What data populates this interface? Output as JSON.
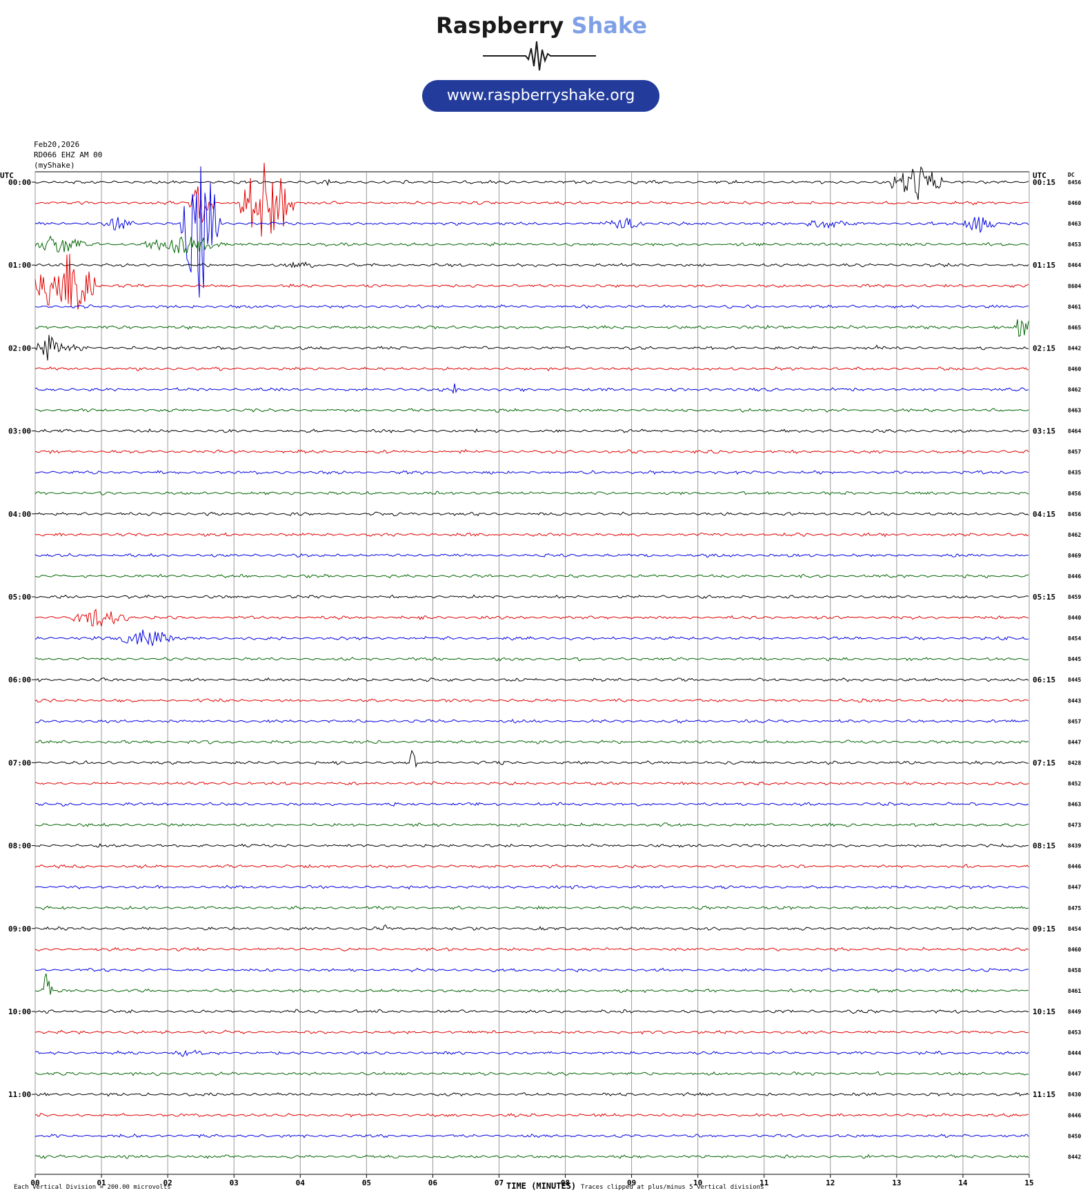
{
  "brand": {
    "word1": "Raspberry",
    "word2": "Shake",
    "url": "www.raspberryshake.org",
    "accent_dark": "#1a1a1a",
    "accent_light": "#7fa0e6",
    "pill_color": "#233c9b",
    "icon": "seismic-wave-icon"
  },
  "header": {
    "date": "Feb20,2026",
    "station": "RD066 EHZ AM 00",
    "owner": "(myShake)"
  },
  "footer": {
    "scale_note": "Each Vertical Division =  200.00 microvolts",
    "xlabel": "TIME (MINUTES)",
    "clip_note": "Traces clipped at plus/minus 5 vertical divisions"
  },
  "chart_data": {
    "type": "line",
    "subtype": "helicorder",
    "xlabel": "TIME (MINUTES)",
    "xlim": [
      0,
      15
    ],
    "x_ticks": [
      "00",
      "01",
      "02",
      "03",
      "04",
      "05",
      "06",
      "07",
      "08",
      "09",
      "10",
      "11",
      "12",
      "13",
      "14",
      "15"
    ],
    "left_axis_title": "UTC",
    "right_axis_title": "UTC",
    "dc_title": "DC",
    "left_labels": [
      "00:00",
      "01:00",
      "02:00",
      "03:00",
      "04:00",
      "05:00",
      "06:00",
      "07:00",
      "08:00",
      "09:00",
      "10:00",
      "11:00"
    ],
    "right_labels": [
      "00:15",
      "01:15",
      "02:15",
      "03:15",
      "04:15",
      "05:15",
      "06:15",
      "07:15",
      "08:15",
      "09:15",
      "10:15",
      "11:15"
    ],
    "dc_values": [
      "8456",
      "8460",
      "8463",
      "8453",
      "8464",
      "8604",
      "8461",
      "8465",
      "8442",
      "8460",
      "8462",
      "8463",
      "8464",
      "8457",
      "8435",
      "8456",
      "8456",
      "8462",
      "8469",
      "8446",
      "8459",
      "8440",
      "8454",
      "8445",
      "8445",
      "8443",
      "8457",
      "8447",
      "8428",
      "8452",
      "8463",
      "8473",
      "8439",
      "8446",
      "8447",
      "8475",
      "8454",
      "8460",
      "8458",
      "8461",
      "8449",
      "8453",
      "8444",
      "8447",
      "8430",
      "8446",
      "8450",
      "8442"
    ],
    "row_colors": [
      "#000000",
      "#e00000",
      "#0000e0",
      "#006400"
    ],
    "row_count": 48,
    "minutes_per_row": 15,
    "events": [
      {
        "row": 0,
        "start": 12.9,
        "end": 13.7,
        "amp": 28
      },
      {
        "row": 0,
        "start": 4.4,
        "end": 4.45,
        "amp": 8
      },
      {
        "row": 1,
        "start": 3.1,
        "end": 3.9,
        "amp": 70
      },
      {
        "row": 1,
        "start": 2.3,
        "end": 2.7,
        "amp": 30
      },
      {
        "row": 2,
        "start": 1.0,
        "end": 1.5,
        "amp": 10
      },
      {
        "row": 2,
        "start": 2.2,
        "end": 2.8,
        "amp": 120
      },
      {
        "row": 2,
        "start": 8.6,
        "end": 9.2,
        "amp": 10
      },
      {
        "row": 2,
        "start": 11.6,
        "end": 12.3,
        "amp": 8
      },
      {
        "row": 2,
        "start": 14.0,
        "end": 14.5,
        "amp": 14
      },
      {
        "row": 3,
        "start": 0.0,
        "end": 0.8,
        "amp": 16
      },
      {
        "row": 3,
        "start": 1.6,
        "end": 2.9,
        "amp": 14
      },
      {
        "row": 4,
        "start": 3.8,
        "end": 4.3,
        "amp": 5
      },
      {
        "row": 5,
        "start": 0.0,
        "end": 0.9,
        "amp": 55
      },
      {
        "row": 7,
        "start": 14.8,
        "end": 15.0,
        "amp": 28
      },
      {
        "row": 8,
        "start": 0.0,
        "end": 0.4,
        "amp": 22
      },
      {
        "row": 8,
        "start": 0.4,
        "end": 0.8,
        "amp": 5
      },
      {
        "row": 8,
        "start": 12.5,
        "end": 12.8,
        "amp": 4
      },
      {
        "row": 10,
        "start": 6.3,
        "end": 6.35,
        "amp": 26
      },
      {
        "row": 21,
        "start": 0.5,
        "end": 1.4,
        "amp": 14
      },
      {
        "row": 22,
        "start": 1.3,
        "end": 2.1,
        "amp": 16
      },
      {
        "row": 28,
        "start": 5.65,
        "end": 5.75,
        "amp": 30
      },
      {
        "row": 36,
        "start": 5.25,
        "end": 5.3,
        "amp": 10
      },
      {
        "row": 39,
        "start": 0.1,
        "end": 0.25,
        "amp": 32
      },
      {
        "row": 42,
        "start": 2.0,
        "end": 2.6,
        "amp": 5
      }
    ]
  }
}
